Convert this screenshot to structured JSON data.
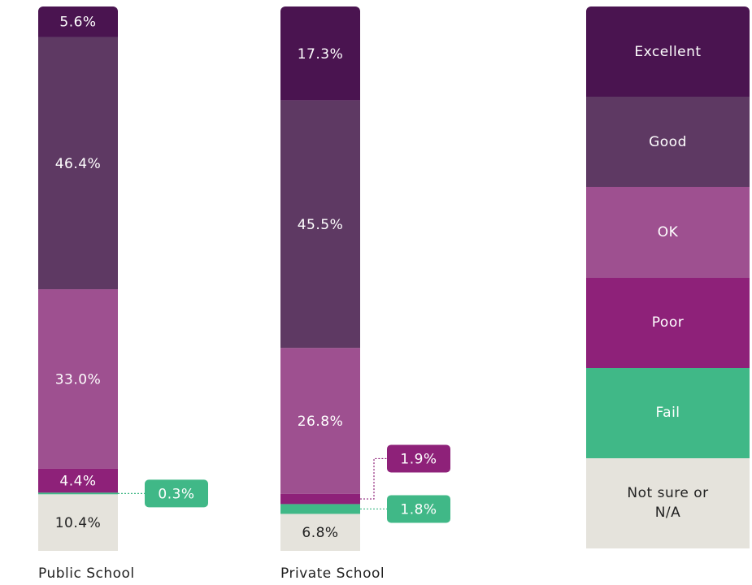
{
  "chart_data": {
    "type": "stacked-bar",
    "categories": [
      "Public School",
      "Private School"
    ],
    "series": [
      {
        "name": "Excellent",
        "color": "#4a1450",
        "values": [
          5.6,
          17.3
        ],
        "value_labels": [
          "5.6%",
          "17.3%"
        ]
      },
      {
        "name": "Good",
        "color": "#5e3963",
        "values": [
          46.4,
          45.5
        ],
        "value_labels": [
          "46.4%",
          "45.5%"
        ]
      },
      {
        "name": "OK",
        "color": "#9e5090",
        "values": [
          33.0,
          26.8
        ],
        "value_labels": [
          "33.0%",
          "26.8%"
        ]
      },
      {
        "name": "Poor",
        "color": "#8e2179",
        "values": [
          4.4,
          1.9
        ],
        "value_labels": [
          "4.4%",
          "1.9%"
        ]
      },
      {
        "name": "Fail",
        "color": "#40b887",
        "values": [
          0.3,
          1.8
        ],
        "value_labels": [
          "0.3%",
          "1.8%"
        ]
      },
      {
        "name": "Not sure or N/A",
        "color": "#e5e3dc",
        "values": [
          10.4,
          6.8
        ],
        "value_labels": [
          "10.4%",
          "6.8%"
        ]
      }
    ]
  }
}
